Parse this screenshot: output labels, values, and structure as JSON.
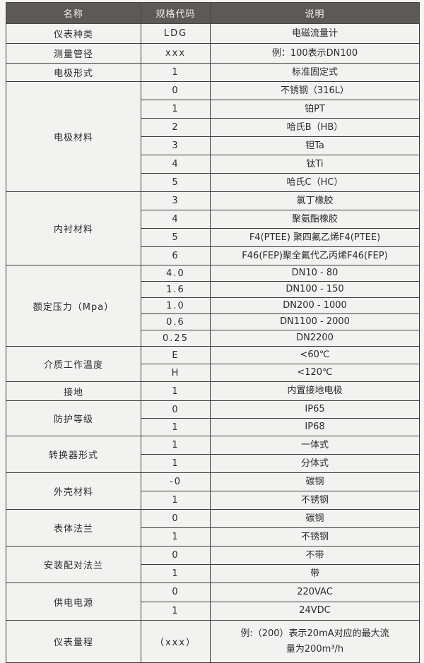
{
  "header": {
    "name": "名称",
    "code": "规格代码",
    "desc": "说明"
  },
  "groups": [
    {
      "name": "仪表种类",
      "rows": [
        {
          "code": "LDG",
          "desc": "电磁流量计"
        }
      ]
    },
    {
      "name": "测量管径",
      "rows": [
        {
          "code": "xxx",
          "desc": "例：100表示DN100"
        }
      ]
    },
    {
      "name": "电极形式",
      "rows": [
        {
          "code": "1",
          "desc": "标准固定式"
        }
      ]
    },
    {
      "name": "电极材料",
      "rows": [
        {
          "code": "0",
          "desc": "不锈钢（316L）"
        },
        {
          "code": "1",
          "desc": "铂PT"
        },
        {
          "code": "2",
          "desc": "哈氏B（HB）"
        },
        {
          "code": "3",
          "desc": "钽Ta"
        },
        {
          "code": "4",
          "desc": "钛Ti"
        },
        {
          "code": "5",
          "desc": "哈氏C（HC）"
        }
      ]
    },
    {
      "name": "内衬材料",
      "rows": [
        {
          "code": "3",
          "desc": "氯丁橡胶"
        },
        {
          "code": "4",
          "desc": "聚氨酯橡胶"
        },
        {
          "code": "5",
          "desc": "F4(PTEE) 聚四氟乙烯F4(PTEE)"
        },
        {
          "code": "6",
          "desc": "F46(FEP)聚全氟代乙丙烯F46(FEP)"
        }
      ]
    },
    {
      "name": "额定压力（Mpa）",
      "rows": [
        {
          "code": "4.0",
          "desc": "DN10 - 80"
        },
        {
          "code": "1.6",
          "desc": "DN100 - 150"
        },
        {
          "code": "1.0",
          "desc": "DN200 - 1000"
        },
        {
          "code": "0.6",
          "desc": "DN1100 - 2000"
        },
        {
          "code": "0.25",
          "desc": "DN2200"
        }
      ]
    },
    {
      "name": "介质工作温度",
      "rows": [
        {
          "code": "E",
          "desc": "<60℃"
        },
        {
          "code": "H",
          "desc": "<120℃"
        }
      ]
    },
    {
      "name": "接地",
      "rows": [
        {
          "code": "1",
          "desc": "内置接地电极"
        }
      ]
    },
    {
      "name": "防护等级",
      "rows": [
        {
          "code": "0",
          "desc": "IP65"
        },
        {
          "code": "1",
          "desc": "IP68"
        }
      ]
    },
    {
      "name": "转换器形式",
      "rows": [
        {
          "code": "1",
          "desc": "一体式"
        },
        {
          "code": "1",
          "desc": "分体式"
        }
      ]
    },
    {
      "name": "外壳材料",
      "rows": [
        {
          "code": "-0",
          "desc": "碳钢"
        },
        {
          "code": "1",
          "desc": "不锈钢"
        }
      ]
    },
    {
      "name": "表体法兰",
      "rows": [
        {
          "code": "0",
          "desc": "碳钢"
        },
        {
          "code": "1",
          "desc": "不锈钢"
        }
      ]
    },
    {
      "name": "安装配对法兰",
      "rows": [
        {
          "code": "0",
          "desc": "不带"
        },
        {
          "code": "1",
          "desc": "带"
        }
      ]
    },
    {
      "name": "供电电源",
      "rows": [
        {
          "code": "0",
          "desc": "220VAC"
        },
        {
          "code": "1",
          "desc": "24VDC"
        }
      ]
    },
    {
      "name": "仪表量程",
      "rows": [
        {
          "code": "（xxx）",
          "desc": "例:（200）表示20mA对应的最大流量为200m³/h"
        }
      ]
    }
  ]
}
